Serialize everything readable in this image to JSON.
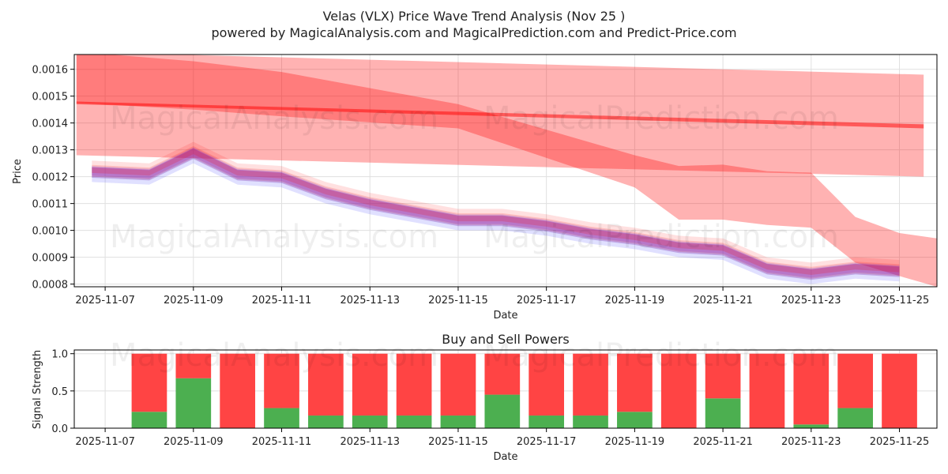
{
  "colors": {
    "red_band": "#ff0000",
    "blue_band": "#0000ff",
    "purple_band": "#9932cc",
    "buy": "#4caf50",
    "sell": "#ff4444",
    "grid": "#e0e0e0"
  },
  "watermarks": [
    "MagicalAnalysis.com",
    "MagicalPrediction.com"
  ],
  "chart_data": [
    {
      "type": "area",
      "title": "Velas (VLX) Price Wave Trend Analysis (Nov 25 )",
      "subtitle": "powered by MagicalAnalysis.com and MagicalPrediction.com and Predict-Price.com",
      "xlabel": "Date",
      "ylabel": "Price",
      "xlim": [
        "2025-11-06.3",
        "2025-11-25.9"
      ],
      "xlim_days": [
        -0.7,
        18.85
      ],
      "ylim": [
        0.00079,
        0.001655
      ],
      "x_ticks": [
        "2025-11-07",
        "2025-11-09",
        "2025-11-11",
        "2025-11-13",
        "2025-11-15",
        "2025-11-17",
        "2025-11-19",
        "2025-11-21",
        "2025-11-23",
        "2025-11-25"
      ],
      "x_tick_days": [
        0,
        2,
        4,
        6,
        8,
        10,
        12,
        14,
        16,
        18
      ],
      "y_ticks": [
        "0.0008",
        "0.0009",
        "0.0010",
        "0.0011",
        "0.0012",
        "0.0013",
        "0.0014",
        "0.0015",
        "0.0016"
      ],
      "y_tick_values": [
        0.0008,
        0.0009,
        0.001,
        0.0011,
        0.0012,
        0.0013,
        0.0014,
        0.0015,
        0.0016
      ],
      "series": [
        {
          "name": "wide red band A",
          "color": "red",
          "opacity": 0.3,
          "x": [
            -0.65,
            18.55
          ],
          "upper": [
            0.001665,
            0.00158
          ],
          "lower": [
            0.00128,
            0.0012
          ]
        },
        {
          "name": "wide red band B",
          "color": "red",
          "opacity": 0.3,
          "x": [
            -0.65,
            2,
            4,
            8,
            12,
            13,
            14,
            15,
            16,
            17,
            18,
            18.85
          ],
          "upper": [
            0.001665,
            0.00163,
            0.00159,
            0.00147,
            0.00128,
            0.00124,
            0.001245,
            0.00122,
            0.001215,
            0.00105,
            0.00099,
            0.00097
          ],
          "lower": [
            0.001475,
            0.00145,
            0.001425,
            0.00138,
            0.00116,
            0.00104,
            0.00104,
            0.00102,
            0.00101,
            0.00088,
            0.00083,
            0.00079
          ]
        },
        {
          "name": "narrow red trend",
          "color": "red",
          "opacity": 0.5,
          "x": [
            -0.65,
            18.55
          ],
          "upper": [
            0.00148,
            0.001395
          ],
          "lower": [
            0.00147,
            0.00138
          ]
        },
        {
          "name": "red blue wave bundle",
          "color": "mixed",
          "opacity": 0.2,
          "x": [
            -0.3,
            1,
            2,
            3,
            4,
            5,
            6,
            7,
            8,
            9,
            10,
            11,
            12,
            13,
            14,
            15,
            16,
            17,
            18
          ],
          "values": [
            0.00122,
            0.00121,
            0.00129,
            0.00121,
            0.0012,
            0.00114,
            0.0011,
            0.00107,
            0.00104,
            0.00104,
            0.00102,
            0.00099,
            0.00097,
            0.00094,
            0.00093,
            0.00086,
            0.00084,
            0.00086,
            0.00085
          ]
        }
      ]
    },
    {
      "type": "bar",
      "title": "Buy and Sell Powers",
      "xlabel": "Date",
      "ylabel": "Signal Strength",
      "ylim": [
        0,
        1.05
      ],
      "xlim_days": [
        -0.7,
        18.85
      ],
      "x_ticks": [
        "2025-11-07",
        "2025-11-09",
        "2025-11-11",
        "2025-11-13",
        "2025-11-15",
        "2025-11-17",
        "2025-11-19",
        "2025-11-21",
        "2025-11-23",
        "2025-11-25"
      ],
      "x_tick_days": [
        0,
        2,
        4,
        6,
        8,
        10,
        12,
        14,
        16,
        18
      ],
      "y_ticks": [
        "0.0",
        "0.5",
        "1.0"
      ],
      "y_tick_values": [
        0,
        0.5,
        1.0
      ],
      "bar_days": [
        1,
        2,
        3,
        4,
        5,
        6,
        7,
        8,
        9,
        10,
        11,
        12,
        13,
        14,
        15,
        16,
        17,
        18
      ],
      "series": [
        {
          "name": "Buy",
          "color": "green",
          "values": [
            0.22,
            0.67,
            0.0,
            0.27,
            0.17,
            0.17,
            0.17,
            0.17,
            0.45,
            0.17,
            0.17,
            0.22,
            0.0,
            0.4,
            0.0,
            0.05,
            0.27,
            0.0
          ]
        },
        {
          "name": "Sell",
          "color": "red",
          "values": [
            0.78,
            0.33,
            1.0,
            0.73,
            0.83,
            0.83,
            0.83,
            0.83,
            0.55,
            0.83,
            0.83,
            0.78,
            1.0,
            0.6,
            1.0,
            0.95,
            0.73,
            1.0
          ]
        }
      ]
    }
  ]
}
